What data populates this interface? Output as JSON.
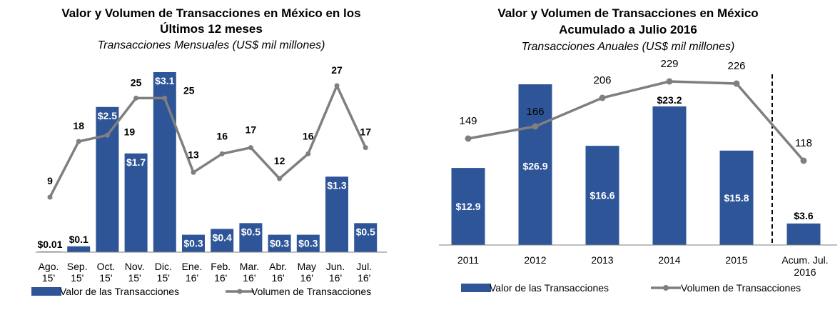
{
  "colors": {
    "bar": "#2E5597",
    "line": "#7F7F7F",
    "axis": "#7F7F7F",
    "divider": "#000000"
  },
  "chart_data": [
    {
      "type": "bar",
      "title_line1": "Valor y Volumen de Transacciones en México en los",
      "title_line2": "Últimos 12 meses",
      "subtitle": "Transacciones Mensuales (US$ mil millones)",
      "categories": [
        [
          "Ago.",
          "15'"
        ],
        [
          "Sep.",
          "15'"
        ],
        [
          "Oct.",
          "15'"
        ],
        [
          "Nov.",
          "15'"
        ],
        [
          "Dic.",
          "15'"
        ],
        [
          "Ene.",
          "16'"
        ],
        [
          "Feb.",
          "16'"
        ],
        [
          "Mar.",
          "16'"
        ],
        [
          "Abr.",
          "16'"
        ],
        [
          "May",
          "16'"
        ],
        [
          "Jun.",
          "16'"
        ],
        [
          "Jul.",
          "16'"
        ]
      ],
      "series": [
        {
          "name": "Valor de las Transacciones",
          "kind": "bar",
          "values": [
            0.01,
            0.1,
            2.5,
            1.7,
            3.1,
            0.3,
            0.4,
            0.5,
            0.3,
            0.3,
            1.3,
            0.5
          ],
          "labels": [
            "$0.01",
            "$0.1",
            "$2.5",
            "$1.7",
            "$3.1",
            "$0.3",
            "$0.4",
            "$0.5",
            "$0.3",
            "$0.3",
            "$1.3",
            "$0.5"
          ]
        },
        {
          "name": "Volumen de Transacciones",
          "kind": "line",
          "values": [
            9,
            18,
            19,
            25,
            25,
            13,
            16,
            17,
            12,
            16,
            27,
            17
          ],
          "labels": [
            "9",
            "18",
            "19",
            "25",
            "25",
            "13",
            "16",
            "17",
            "12",
            "16",
            "27",
            "17"
          ]
        }
      ],
      "bar_ylim": [
        0,
        3.1
      ],
      "line_ylim": [
        0,
        27
      ],
      "grid": false,
      "legend": "bottom"
    },
    {
      "type": "bar",
      "title_line1": "Valor y Volumen de Transacciones en México",
      "title_line2": "Acumulado a Julio 2016",
      "subtitle": "Transacciones Anuales (US$ mil millones)",
      "categories": [
        [
          "2011"
        ],
        [
          "2012"
        ],
        [
          "2013"
        ],
        [
          "2014"
        ],
        [
          "2015"
        ],
        [
          "Acum. Jul.",
          "2016"
        ]
      ],
      "series": [
        {
          "name": "Valor de las Transacciones",
          "kind": "bar",
          "values": [
            12.9,
            26.9,
            16.6,
            23.2,
            15.8,
            3.6
          ],
          "labels": [
            "$12.9",
            "$26.9",
            "$16.6",
            "$23.2",
            "$15.8",
            "$3.6"
          ]
        },
        {
          "name": "Volumen de Transacciones",
          "kind": "line",
          "values": [
            149,
            166,
            206,
            229,
            226,
            118
          ],
          "labels": [
            "149",
            "166",
            "206",
            "229",
            "226",
            "118"
          ]
        }
      ],
      "bar_ylim": [
        0,
        26.9
      ],
      "line_ylim": [
        0,
        229
      ],
      "grid": false,
      "legend": "bottom",
      "divider_before_last": true
    }
  ]
}
